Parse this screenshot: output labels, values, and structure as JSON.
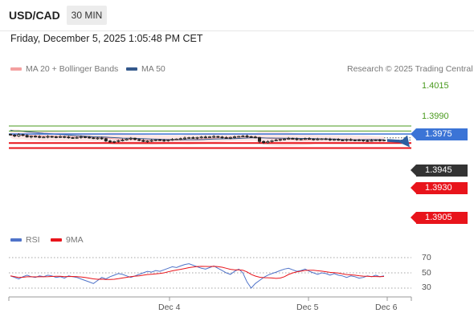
{
  "header": {
    "pair": "USD/CAD",
    "timeframe": "30 MIN",
    "datetime": "Friday, December 5, 2025 1:05:48 PM CET"
  },
  "legend": {
    "ma20_label": "MA 20 + Bollinger Bands",
    "ma50_label": "MA 50",
    "credit": "Research © 2025 Trading Central",
    "rsi_label": "RSI",
    "rsi_ma_label": "9MA"
  },
  "colors": {
    "ma20": "#f4a0a0",
    "ma50": "#34598c",
    "bands_fill": "#fde0e0",
    "resistance_line": "#3b74d6",
    "support_line": "#e8141b",
    "target_green": "#4a9a1e",
    "current_price": "#333333",
    "rsi": "#4f73c9",
    "rsi_ma": "#e8141b",
    "arrow": "#2c5ea0"
  },
  "chart_data": [
    {
      "type": "candlestick",
      "ylim": [
        1.3895,
        1.4025
      ],
      "x_ticks": [
        "Dec 4",
        "Dec 5",
        "Dec 6"
      ],
      "price_levels": [
        {
          "value": "1.4015",
          "style": "green-line"
        },
        {
          "value": "1.3990",
          "style": "green-line"
        },
        {
          "value": "1.3975",
          "style": "blue-resistance"
        },
        {
          "value": "1.3945",
          "style": "current-price"
        },
        {
          "value": "1.3930",
          "style": "red-support"
        },
        {
          "value": "1.3905",
          "style": "red-support"
        }
      ],
      "series": [
        {
          "name": "MA 20 + Bollinger Bands"
        },
        {
          "name": "MA 50"
        }
      ],
      "closes": [
        1.397,
        1.3965,
        1.3972,
        1.3968,
        1.396,
        1.3964,
        1.3962,
        1.3958,
        1.396,
        1.3963,
        1.3961,
        1.3958,
        1.3962,
        1.396,
        1.3957,
        1.3955,
        1.3958,
        1.3961,
        1.3959,
        1.3956,
        1.3953,
        1.3955,
        1.3952,
        1.394,
        1.3935,
        1.3938,
        1.3942,
        1.3945,
        1.395,
        1.3954,
        1.3948,
        1.3943,
        1.3938,
        1.394,
        1.3943,
        1.3946,
        1.3944,
        1.3942,
        1.3945,
        1.3948,
        1.395,
        1.3952,
        1.3955,
        1.3957,
        1.3955,
        1.3958,
        1.396,
        1.3958,
        1.3961,
        1.3963,
        1.396,
        1.3957,
        1.3955,
        1.3958,
        1.3961,
        1.3963,
        1.3965,
        1.3962,
        1.396,
        1.3958,
        1.3938,
        1.3932,
        1.3937,
        1.3942,
        1.3945,
        1.3948,
        1.395,
        1.3953,
        1.3951,
        1.3948,
        1.395,
        1.3952,
        1.395,
        1.3948,
        1.395,
        1.3951,
        1.3949,
        1.3946,
        1.3948,
        1.3945,
        1.3944,
        1.3947,
        1.3945,
        1.3943,
        1.3945,
        1.3942,
        1.3941,
        1.3943,
        1.3945,
        1.3943,
        1.3945
      ],
      "rsi": {
        "ylim": [
          20,
          80
        ],
        "levels": [
          "70",
          "50",
          "30"
        ],
        "values": [
          46,
          44,
          42,
          45,
          47,
          45,
          44,
          46,
          45,
          47,
          46,
          44,
          45,
          43,
          46,
          45,
          44,
          42,
          40,
          38,
          36,
          40,
          44,
          42,
          45,
          47,
          49,
          48,
          46,
          44,
          46,
          48,
          50,
          52,
          51,
          53,
          52,
          54,
          56,
          58,
          57,
          59,
          61,
          62,
          60,
          58,
          56,
          55,
          57,
          59,
          56,
          53,
          50,
          48,
          52,
          55,
          50,
          38,
          30,
          36,
          40,
          44,
          47,
          49,
          51,
          53,
          55,
          56,
          54,
          52,
          53,
          55,
          52,
          50,
          48,
          50,
          49,
          47,
          49,
          47,
          46,
          44,
          46,
          45,
          43,
          44,
          46,
          45,
          47,
          45,
          46
        ]
      }
    }
  ]
}
